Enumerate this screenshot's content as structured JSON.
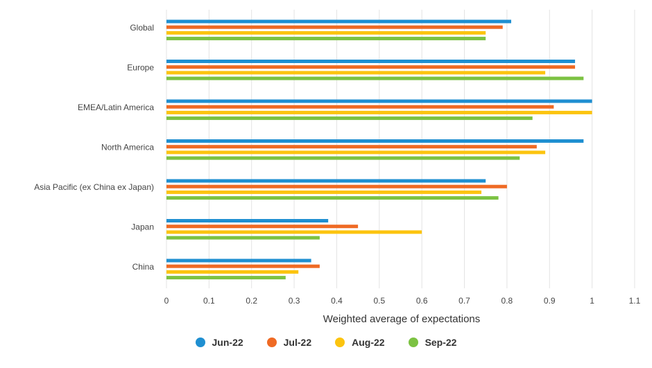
{
  "chart_data": {
    "type": "bar",
    "orientation": "horizontal",
    "categories": [
      "Global",
      "Europe",
      "EMEA/Latin America",
      "North America",
      "Asia Pacific (ex China ex Japan)",
      "Japan",
      "China"
    ],
    "series": [
      {
        "name": "Jun-22",
        "color": "#1f8fd1",
        "values": [
          0.81,
          0.96,
          1.0,
          0.98,
          0.75,
          0.38,
          0.34
        ]
      },
      {
        "name": "Jul-22",
        "color": "#ef6a24",
        "values": [
          0.79,
          0.96,
          0.91,
          0.87,
          0.8,
          0.45,
          0.36
        ]
      },
      {
        "name": "Aug-22",
        "color": "#fcc40f",
        "values": [
          0.75,
          0.89,
          1.0,
          0.89,
          0.74,
          0.6,
          0.31
        ]
      },
      {
        "name": "Sep-22",
        "color": "#7cc242",
        "values": [
          0.75,
          0.98,
          0.86,
          0.83,
          0.78,
          0.36,
          0.28
        ]
      }
    ],
    "xlabel": "Weighted average of expectations",
    "xlim": [
      0,
      1.1
    ],
    "xticks": [
      "0",
      "0.1",
      "0.2",
      "0.3",
      "0.4",
      "0.5",
      "0.6",
      "0.7",
      "0.8",
      "0.9",
      "1",
      "1.1"
    ],
    "grid": "vertical",
    "legend": "bottom-center"
  }
}
